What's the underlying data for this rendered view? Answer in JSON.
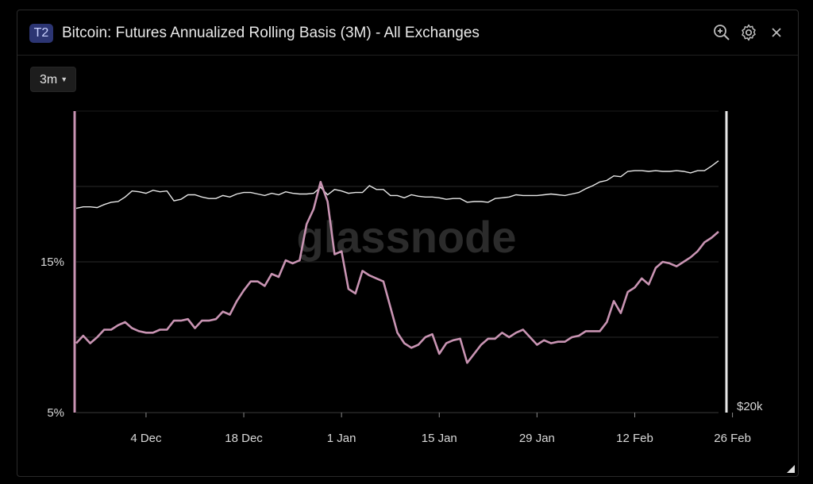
{
  "header": {
    "badge": "T2",
    "title": "Bitcoin: Futures Annualized Rolling Basis (3M) - All Exchanges",
    "icons": [
      "zoom-in-icon",
      "settings-gear-icon",
      "close-icon"
    ]
  },
  "controls": {
    "range_label": "3m"
  },
  "watermark": "glassnode",
  "colors": {
    "basis": "#c994b3",
    "price": "#e8e8e8",
    "grid": "#2a2a2a",
    "axis_text": "#d9d9d9"
  },
  "chart_data": {
    "type": "line",
    "title": "Bitcoin: Futures Annualized Rolling Basis (3M) - All Exchanges",
    "x_start": "2023-11-24",
    "x_ticks": [
      "4 Dec",
      "18 Dec",
      "1 Jan",
      "15 Jan",
      "29 Jan",
      "12 Feb",
      "26 Feb"
    ],
    "x_tick_days": [
      10,
      24,
      38,
      52,
      66,
      80,
      94
    ],
    "y_left": {
      "min": 5,
      "max": 25,
      "ticks": [
        5,
        15
      ],
      "tick_labels": [
        "5%",
        "15%"
      ],
      "unit": "%"
    },
    "y_right": {
      "tick_labels": [
        "$20k"
      ]
    },
    "grid": true,
    "series": [
      {
        "axis": "left",
        "values": [
          9.6,
          10.1,
          9.6,
          10.0,
          10.5,
          10.5,
          10.8,
          11.0,
          10.6,
          10.4,
          10.3,
          10.3,
          10.5,
          10.5,
          11.1,
          11.1,
          11.2,
          10.6,
          11.1,
          11.1,
          11.2,
          11.7,
          11.5,
          12.4,
          13.1,
          13.7,
          13.7,
          13.4,
          14.2,
          14.0,
          15.1,
          14.9,
          15.1,
          17.5,
          18.5,
          20.3,
          19.0,
          15.5,
          15.7,
          13.2,
          12.9,
          14.4,
          14.1,
          13.9,
          13.7,
          12.0,
          10.3,
          9.6,
          9.3,
          9.5,
          10.0,
          10.2,
          8.9,
          9.6,
          9.8,
          9.9,
          8.3,
          8.9,
          9.5,
          9.9,
          9.9,
          10.3,
          10.0,
          10.3,
          10.5,
          10.0,
          9.5,
          9.8,
          9.6,
          9.7,
          9.7,
          10.0,
          10.1,
          10.4,
          10.4,
          10.4,
          11.0,
          12.4,
          11.6,
          13.0,
          13.3,
          13.9,
          13.5,
          14.6,
          15.0,
          14.9,
          14.7,
          15.0,
          15.3,
          15.7,
          16.3,
          16.6,
          17.0
        ],
        "color": "#c994b3"
      },
      {
        "axis": "right",
        "values": [
          37.1,
          37.3,
          37.3,
          37.2,
          37.6,
          37.9,
          38.0,
          38.6,
          39.4,
          39.3,
          39.1,
          39.5,
          39.3,
          39.4,
          38.1,
          38.3,
          38.9,
          38.9,
          38.6,
          38.4,
          38.4,
          38.8,
          38.6,
          39.0,
          39.2,
          39.2,
          39.0,
          38.8,
          39.1,
          38.9,
          39.3,
          39.1,
          39.0,
          39.0,
          39.1,
          39.9,
          38.9,
          39.6,
          39.4,
          39.1,
          39.2,
          39.2,
          40.1,
          39.6,
          39.6,
          38.8,
          38.8,
          38.5,
          38.9,
          38.7,
          38.6,
          38.6,
          38.5,
          38.3,
          38.4,
          38.4,
          37.9,
          38.0,
          38.0,
          37.9,
          38.4,
          38.5,
          38.6,
          38.9,
          38.8,
          38.8,
          38.8,
          38.9,
          39.0,
          38.9,
          38.8,
          39.0,
          39.2,
          39.7,
          40.1,
          40.6,
          40.8,
          41.4,
          41.3,
          42.0,
          42.1,
          42.1,
          42.0,
          42.1,
          42.0,
          42.0,
          42.1,
          42.0,
          41.8,
          42.1,
          42.1,
          42.7,
          43.4
        ]
      }
    ]
  }
}
